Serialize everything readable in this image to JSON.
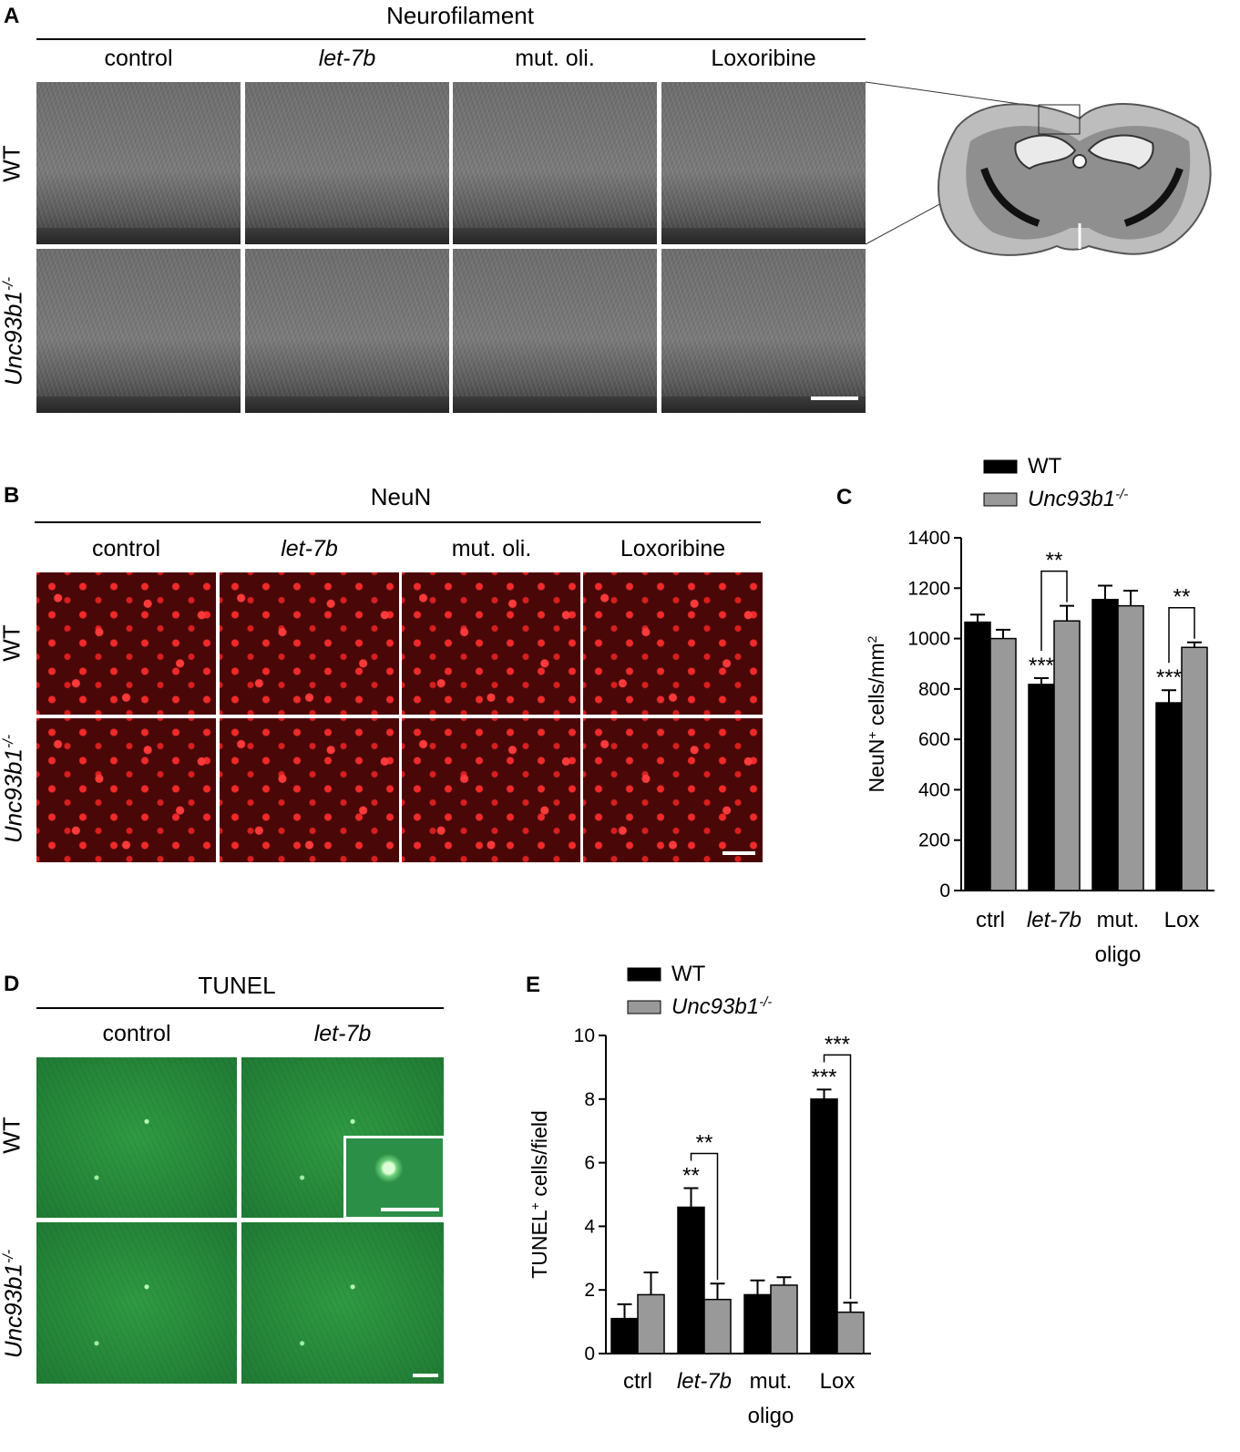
{
  "panels": {
    "A": {
      "label": "A",
      "title": "Neurofilament",
      "columns": [
        "control",
        "let-7b",
        "mut. oli.",
        "Loxoribine"
      ],
      "rows": [
        "WT",
        "Unc93b1"
      ],
      "row_sup": "-/-"
    },
    "B": {
      "label": "B",
      "title": "NeuN",
      "columns": [
        "control",
        "let-7b",
        "mut. oli.",
        "Loxoribine"
      ],
      "rows": [
        "WT",
        "Unc93b1"
      ],
      "row_sup": "-/-"
    },
    "D": {
      "label": "D",
      "title": "TUNEL",
      "columns": [
        "control",
        "let-7b"
      ],
      "rows": [
        "WT",
        "Unc93b1"
      ],
      "row_sup": "-/-"
    }
  },
  "colors": {
    "wt": "#000000",
    "unc": "#999999"
  },
  "chart_data": [
    {
      "id": "C",
      "type": "bar",
      "panel_label": "C",
      "categories": [
        "ctrl",
        "let-7b",
        "mut.",
        "Lox"
      ],
      "category_second_line": [
        "",
        "",
        "oligo",
        ""
      ],
      "ylabel": "NeuN",
      "ylabel_sup": "+",
      "ylabel_rest": " cells/mm",
      "ylabel_exp": "2",
      "ylim": [
        0,
        1400
      ],
      "yticks": [
        0,
        200,
        400,
        600,
        800,
        1000,
        1200,
        1400
      ],
      "series": [
        {
          "name": "WT",
          "values": [
            1065,
            818,
            1155,
            745
          ],
          "errors": [
            30,
            25,
            55,
            50
          ]
        },
        {
          "name": "Unc93b1",
          "name_sup": "-/-",
          "values": [
            1000,
            1070,
            1130,
            965
          ],
          "errors": [
            35,
            60,
            60,
            20
          ]
        }
      ],
      "stars_wt": [
        "",
        "***",
        "",
        "***"
      ],
      "brackets": [
        {
          "category": 1,
          "text": "**"
        },
        {
          "category": 3,
          "text": "**"
        }
      ],
      "legend": "top"
    },
    {
      "id": "E",
      "type": "bar",
      "panel_label": "E",
      "categories": [
        "ctrl",
        "let-7b",
        "mut.",
        "Lox"
      ],
      "category_second_line": [
        "",
        "",
        "oligo",
        ""
      ],
      "ylabel": "TUNEL",
      "ylabel_sup": "+",
      "ylabel_rest": " cells/field",
      "ylabel_exp": "",
      "ylim": [
        0,
        10
      ],
      "yticks": [
        0,
        2,
        4,
        6,
        8,
        10
      ],
      "series": [
        {
          "name": "WT",
          "values": [
            1.1,
            4.6,
            1.85,
            8.0
          ],
          "errors": [
            0.45,
            0.6,
            0.45,
            0.3
          ]
        },
        {
          "name": "Unc93b1",
          "name_sup": "-/-",
          "values": [
            1.85,
            1.7,
            2.15,
            1.3
          ],
          "errors": [
            0.7,
            0.5,
            0.25,
            0.3
          ]
        }
      ],
      "stars_wt": [
        "",
        "**",
        "",
        "***"
      ],
      "brackets": [
        {
          "category": 1,
          "text": "**"
        },
        {
          "category": 3,
          "text": "***"
        }
      ],
      "legend": "top"
    }
  ]
}
